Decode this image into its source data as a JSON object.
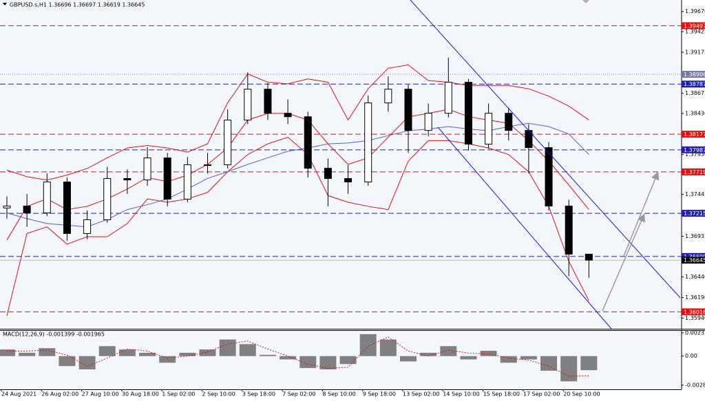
{
  "chart_data": {
    "type": "candlestick",
    "title": "GBPUSD.s,H1  1.36696 1.36697 1.36619 1.36645",
    "categories": [
      "24 Aug 2021",
      null,
      "26 Aug 02:00",
      null,
      "27 Aug 10:00",
      null,
      "30 Aug 18:00",
      null,
      "1 Sep 02:00",
      null,
      "2 Sep 10:00",
      null,
      "3 Sep 18:00",
      null,
      "7 Sep 02:00",
      null,
      "8 Sep 10:00",
      null,
      "9 Sep 18:00",
      null,
      "13 Sep 02:00",
      null,
      "14 Sep 10:00",
      null,
      "15 Sep 18:00",
      null,
      "17 Sep 02:00",
      null,
      "20 Sep 10:00",
      null
    ],
    "open": [
      1.3728,
      1.37303,
      1.3722,
      1.37596,
      1.36969,
      1.37136,
      1.37638,
      1.37621,
      1.37889,
      1.37387,
      1.37805,
      1.37805,
      1.38349,
      1.38725,
      1.38432,
      1.3839,
      1.37763,
      1.37638,
      1.37596,
      1.38558,
      1.38725,
      1.38223,
      1.38432,
      1.38809,
      1.38056,
      1.38432,
      1.38223,
      1.38014,
      1.37303,
      1.36718
    ],
    "high": [
      1.3742,
      1.3745,
      1.377,
      1.3765,
      1.3725,
      1.3778,
      1.3775,
      1.3802,
      1.3795,
      1.379,
      1.3795,
      1.3848,
      1.3893,
      1.388,
      1.386,
      1.3845,
      1.3788,
      1.378,
      1.3865,
      1.3888,
      1.3878,
      1.3855,
      1.3911,
      1.3885,
      1.3855,
      1.385,
      1.383,
      1.3808,
      1.3738,
      1.3672
    ],
    "low": [
      1.3715,
      1.3705,
      1.3718,
      1.3688,
      1.369,
      1.371,
      1.3745,
      1.3755,
      1.373,
      1.3735,
      1.377,
      1.3776,
      1.383,
      1.3835,
      1.383,
      1.3765,
      1.373,
      1.3745,
      1.3755,
      1.3845,
      1.3795,
      1.3815,
      1.3838,
      1.3798,
      1.38,
      1.381,
      1.377,
      1.3725,
      1.3645,
      1.3643
    ],
    "close": [
      1.37303,
      1.3722,
      1.37596,
      1.36969,
      1.37136,
      1.37638,
      1.37621,
      1.37889,
      1.37387,
      1.37805,
      1.37805,
      1.38349,
      1.38725,
      1.38432,
      1.3839,
      1.37763,
      1.37638,
      1.37596,
      1.38558,
      1.38725,
      1.38223,
      1.38432,
      1.38809,
      1.38056,
      1.38432,
      1.38223,
      1.38014,
      1.37303,
      1.36718,
      1.36645
    ],
    "overlays": [
      {
        "color": "#e01010",
        "values": [
          1.3774,
          1.3766,
          1.3762,
          1.3768,
          1.3776,
          1.3789,
          1.3801,
          1.3804,
          1.3801,
          1.3796,
          1.3806,
          1.3856,
          1.3891,
          1.3881,
          1.3879,
          1.3885,
          1.3881,
          1.3835,
          1.3873,
          1.3898,
          1.3902,
          1.3883,
          1.3881,
          1.3877,
          1.3877,
          1.3877,
          1.3873,
          1.3864,
          1.3852,
          1.3835
        ]
      },
      {
        "color": "#e01010",
        "values": [
          1.3689,
          1.373,
          1.3739,
          1.3726,
          1.373,
          1.3739,
          1.3751,
          1.3765,
          1.376,
          1.3768,
          1.3781,
          1.3801,
          1.3835,
          1.3843,
          1.3843,
          1.3835,
          1.3806,
          1.3781,
          1.3789,
          1.3814,
          1.3839,
          1.3843,
          1.3848,
          1.3839,
          1.3835,
          1.3831,
          1.381,
          1.3785,
          1.3756,
          1.3726
        ]
      },
      {
        "color": "#e01010",
        "values": [
          1.3597,
          1.3697,
          1.3705,
          1.3684,
          1.3693,
          1.3693,
          1.3709,
          1.3739,
          1.3735,
          1.3739,
          1.3747,
          1.3772,
          1.3793,
          1.3806,
          1.3814,
          1.3793,
          1.3743,
          1.3735,
          1.373,
          1.3726,
          1.3785,
          1.381,
          1.381,
          1.3806,
          1.3801,
          1.3793,
          1.3772,
          1.373,
          1.3663,
          1.3615
        ]
      },
      {
        "color": "#5a5ad0",
        "values": [
          1.3722,
          1.3715,
          1.3709,
          1.3707,
          1.3705,
          1.3714,
          1.3726,
          1.3732,
          1.3739,
          1.3751,
          1.3764,
          1.3772,
          1.3781,
          1.3789,
          1.3797,
          1.3801,
          1.3806,
          1.3807,
          1.381,
          1.3816,
          1.3822,
          1.3824,
          1.3827,
          1.3824,
          1.3822,
          1.3827,
          1.3831,
          1.3827,
          1.3818,
          1.3793
        ]
      }
    ],
    "levels": [
      {
        "value": 1.39497,
        "label": "1.39497",
        "color": "#e01010",
        "dash": "8 4"
      },
      {
        "value": 1.38906,
        "label": "1.38906",
        "color": "#7878a8",
        "dash": "1 2"
      },
      {
        "value": 1.38787,
        "label": "1.38787",
        "color": "#2020b0",
        "dash": "8 4"
      },
      {
        "value": 1.38177,
        "label": "1.38177",
        "color": "#e01010",
        "dash": "8 4"
      },
      {
        "value": 1.37987,
        "label": "1.37987",
        "color": "#2020b0",
        "dash": "8 4"
      },
      {
        "value": 1.37719,
        "label": "1.37719",
        "color": "#e01010",
        "dash": "8 4"
      },
      {
        "value": 1.37215,
        "label": "1.37215",
        "color": "#2020b0",
        "dash": "8 4"
      },
      {
        "value": 1.3669,
        "label": "1.36690",
        "color": "#2020b0",
        "dash": "8 4"
      },
      {
        "value": 1.36645,
        "label": "1.36645",
        "color": "#000000",
        "dash": "none"
      },
      {
        "value": 1.36016,
        "label": "1.36016",
        "color": "#e01010",
        "dash": "8 4"
      }
    ],
    "ylim": [
      1.3581,
      1.3981
    ],
    "yticks": [
      {
        "value": 1.3967,
        "label": "1.39670"
      },
      1.39425,
      1.39175,
      1.38675,
      {
        "value": 1.3843,
        "label": "1.38430"
      },
      {
        "value": 1.3793,
        "label": "1.37930"
      },
      1.37445,
      1.36935,
      {
        "value": 1.3644,
        "label": "1.36440"
      },
      {
        "value": 1.3619,
        "label": "1.36190"
      },
      {
        "value": 1.3594,
        "label": "1.35940"
      }
    ],
    "macd": {
      "title": "MACD(12,26,9) -0.001399 -0.001965",
      "color": "#808080",
      "signal_color": "#e01010",
      "histogram": [
        0.00066,
        0.00033,
        0.00079,
        -0.00099,
        -0.00132,
        0.00099,
        0.00066,
        0.00033,
        -0.00066,
        0.00033,
        0.00066,
        0.00165,
        0.00119,
        0.00013,
        -0.00033,
        -0.00119,
        -0.00132,
        -0.00079,
        0.00218,
        0.00165,
        -0.00053,
        0.00033,
        0.00099,
        -0.00033,
        0.00053,
        -0.00066,
        -0.00033,
        -0.00145,
        -0.00251,
        -0.001399
      ],
      "signal": [
        0.0005,
        0.0005,
        0.0006,
        0.0001,
        -0.001,
        -0.0002,
        0.0007,
        0.0005,
        -0.0002,
        0,
        0.0004,
        0.0012,
        0.0015,
        0.0007,
        0,
        -0.0008,
        -0.0012,
        -0.0011,
        0.001,
        0.0019,
        0.0005,
        0,
        0.0006,
        0.0003,
        0.0002,
        -0.0002,
        -0.0004,
        -0.001,
        -0.002,
        -0.001965
      ],
      "ylim": [
        -0.0033,
        0.00251
      ],
      "yticks": [
        0.00231,
        {
          "value": 0,
          "label": "0.00"
        },
        -0.002889
      ]
    }
  }
}
